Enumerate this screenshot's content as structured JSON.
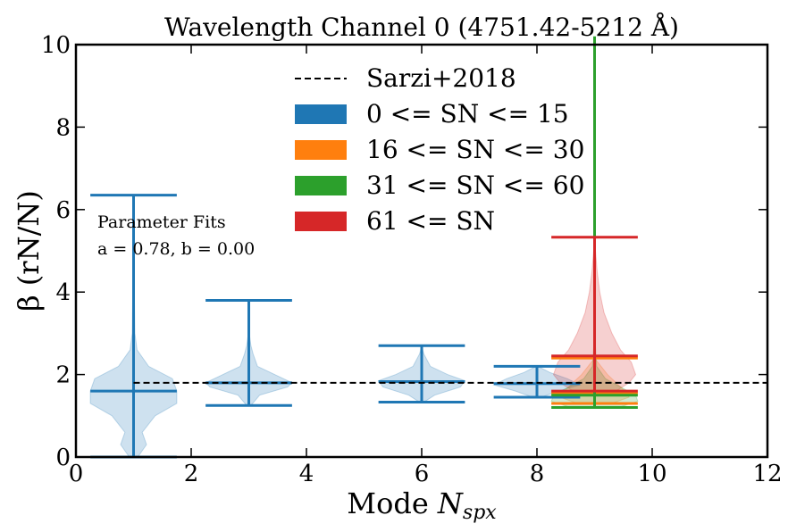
{
  "chart_data": {
    "type": "violin",
    "title": "Wavelength Channel 0 (4751.42-5212 Å)",
    "xlabel_prefix": "Mode ",
    "xlabel_var": "N",
    "xlabel_sub": "spx",
    "ylabel": "β (rN/N)",
    "xlim": [
      0,
      12
    ],
    "ylim": [
      0,
      10
    ],
    "xticks": [
      0,
      2,
      4,
      6,
      8,
      10,
      12
    ],
    "yticks": [
      0,
      2,
      4,
      6,
      8,
      10
    ],
    "xtick_labels": [
      "0",
      "2",
      "4",
      "6",
      "8",
      "10",
      "12"
    ],
    "ytick_labels": [
      "0",
      "2",
      "4",
      "6",
      "8",
      "10"
    ],
    "reference_line": {
      "label": "Sarzi+2018",
      "y": 1.8,
      "x_start": 1,
      "style": "dashed"
    },
    "annotation": {
      "line1": "Parameter Fits",
      "line2": "a = 0.78, b = 0.00"
    },
    "legend_position": "top-center",
    "series": [
      {
        "name": "0 <= SN <= 15",
        "color": "#1f77b4",
        "fill": "#c6d9ec",
        "groups": [
          {
            "x": 1,
            "min": 0,
            "max": 6.35,
            "median": 1.6,
            "profile": [
              [
                0,
                0.1
              ],
              [
                0.3,
                0.3
              ],
              [
                0.6,
                0.2
              ],
              [
                1.0,
                0.5
              ],
              [
                1.3,
                1.0
              ],
              [
                1.6,
                1.0
              ],
              [
                1.9,
                0.9
              ],
              [
                2.2,
                0.35
              ],
              [
                2.6,
                0.08
              ],
              [
                3.0,
                0.03
              ],
              [
                4.5,
                0.01
              ],
              [
                6.35,
                0.0
              ]
            ]
          },
          {
            "x": 3,
            "min": 1.25,
            "max": 3.8,
            "median": 1.8,
            "profile": [
              [
                1.25,
                0.05
              ],
              [
                1.5,
                0.25
              ],
              [
                1.7,
                0.9
              ],
              [
                1.8,
                1.0
              ],
              [
                1.95,
                0.7
              ],
              [
                2.2,
                0.2
              ],
              [
                2.5,
                0.1
              ],
              [
                2.7,
                0.05
              ],
              [
                3.0,
                0.01
              ],
              [
                3.8,
                0.0
              ]
            ]
          },
          {
            "x": 6,
            "min": 1.33,
            "max": 2.7,
            "median": 1.83,
            "profile": [
              [
                1.33,
                0.05
              ],
              [
                1.5,
                0.3
              ],
              [
                1.7,
                0.9
              ],
              [
                1.85,
                1.0
              ],
              [
                2.0,
                0.6
              ],
              [
                2.2,
                0.2
              ],
              [
                2.5,
                0.05
              ],
              [
                2.7,
                0.0
              ]
            ]
          },
          {
            "x": 8,
            "min": 1.45,
            "max": 2.2,
            "median": 1.78,
            "profile": [
              [
                1.45,
                0.1
              ],
              [
                1.6,
                0.5
              ],
              [
                1.75,
                1.0
              ],
              [
                1.9,
                0.7
              ],
              [
                2.05,
                0.3
              ],
              [
                2.2,
                0.02
              ]
            ]
          }
        ]
      },
      {
        "name": "16 <= SN <= 30",
        "color": "#ff7f0e",
        "fill": "#f0d2b0",
        "groups": [
          {
            "x": 9,
            "min": 1.3,
            "max": 2.4,
            "median": 1.55,
            "profile": [
              [
                1.3,
                0.4
              ],
              [
                1.45,
                0.8
              ],
              [
                1.6,
                0.7
              ],
              [
                1.8,
                0.5
              ],
              [
                2.0,
                0.3
              ],
              [
                2.2,
                0.15
              ],
              [
                2.4,
                0.0
              ]
            ]
          }
        ]
      },
      {
        "name": "31 <= SN <= 60",
        "color": "#2ca02c",
        "fill": "#c8e6c3",
        "groups": [
          {
            "x": 9,
            "min": 1.2,
            "max": 10.2,
            "median": 1.5,
            "profile": [
              [
                1.2,
                0.55
              ],
              [
                1.35,
                1.0
              ],
              [
                1.5,
                0.95
              ],
              [
                1.7,
                0.6
              ],
              [
                1.9,
                0.25
              ],
              [
                2.2,
                0.05
              ],
              [
                3.0,
                0.0
              ]
            ]
          }
        ]
      },
      {
        "name": "61 <= SN",
        "color": "#d62728",
        "fill": "#f3c4c4",
        "groups": [
          {
            "x": 9,
            "min": 1.6,
            "max": 5.33,
            "median": 2.45,
            "profile": [
              [
                1.6,
                0.5
              ],
              [
                1.8,
                0.8
              ],
              [
                2.0,
                0.95
              ],
              [
                2.3,
                0.85
              ],
              [
                2.6,
                0.6
              ],
              [
                3.0,
                0.4
              ],
              [
                3.5,
                0.22
              ],
              [
                4.0,
                0.12
              ],
              [
                4.5,
                0.06
              ],
              [
                5.0,
                0.02
              ],
              [
                5.33,
                0.0
              ]
            ]
          }
        ]
      }
    ]
  },
  "colors": {
    "axis": "#000000",
    "reference_line": "#000000",
    "background": "#ffffff"
  }
}
